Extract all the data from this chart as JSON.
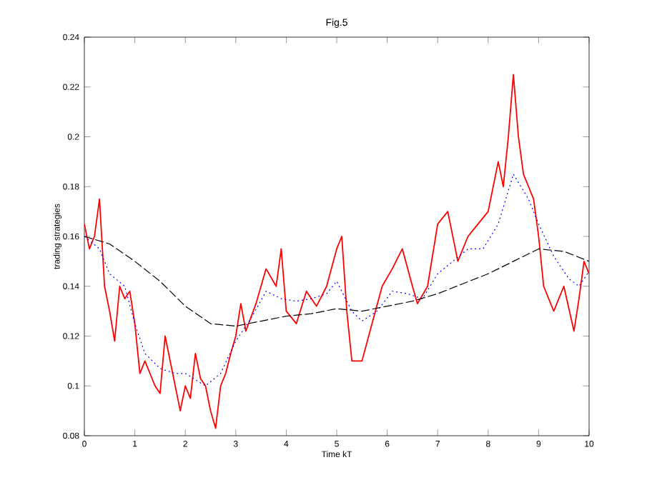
{
  "chart_data": {
    "type": "line",
    "title": "Fig.5",
    "xlabel": "Time kT",
    "ylabel": "trading strategies",
    "xlim": [
      0,
      10
    ],
    "ylim": [
      0.08,
      0.24
    ],
    "xticks": [
      0,
      1,
      2,
      3,
      4,
      5,
      6,
      7,
      8,
      9,
      10
    ],
    "yticks": [
      0.08,
      0.1,
      0.12,
      0.14,
      0.16,
      0.18,
      0.2,
      0.22,
      0.24
    ],
    "series": [
      {
        "color": "#ff0000",
        "line_style": "solid",
        "x": [
          0,
          0.1,
          0.2,
          0.3,
          0.4,
          0.5,
          0.6,
          0.7,
          0.8,
          0.9,
          1.0,
          1.1,
          1.2,
          1.4,
          1.5,
          1.6,
          1.8,
          1.9,
          2.0,
          2.1,
          2.2,
          2.3,
          2.4,
          2.5,
          2.6,
          2.7,
          2.8,
          2.9,
          3.0,
          3.1,
          3.2,
          3.4,
          3.6,
          3.8,
          3.9,
          4.0,
          4.2,
          4.4,
          4.6,
          4.8,
          5.0,
          5.1,
          5.2,
          5.3,
          5.5,
          5.7,
          5.9,
          6.1,
          6.3,
          6.5,
          6.6,
          6.8,
          7.0,
          7.2,
          7.4,
          7.6,
          7.8,
          8.0,
          8.2,
          8.3,
          8.4,
          8.5,
          8.6,
          8.7,
          8.8,
          8.9,
          9.0,
          9.1,
          9.3,
          9.5,
          9.7,
          9.8,
          9.9,
          10.0
        ],
        "values": [
          0.165,
          0.155,
          0.16,
          0.175,
          0.14,
          0.13,
          0.118,
          0.14,
          0.135,
          0.138,
          0.125,
          0.105,
          0.11,
          0.1,
          0.097,
          0.12,
          0.1,
          0.09,
          0.1,
          0.095,
          0.113,
          0.103,
          0.1,
          0.09,
          0.083,
          0.1,
          0.105,
          0.113,
          0.12,
          0.133,
          0.122,
          0.133,
          0.147,
          0.14,
          0.155,
          0.13,
          0.125,
          0.138,
          0.132,
          0.14,
          0.155,
          0.16,
          0.13,
          0.11,
          0.11,
          0.125,
          0.14,
          0.147,
          0.155,
          0.14,
          0.133,
          0.14,
          0.165,
          0.17,
          0.15,
          0.16,
          0.165,
          0.17,
          0.19,
          0.18,
          0.2,
          0.225,
          0.2,
          0.185,
          0.18,
          0.175,
          0.16,
          0.14,
          0.13,
          0.14,
          0.122,
          0.135,
          0.15,
          0.145
        ]
      },
      {
        "color": "#0000ff",
        "line_style": "dotted",
        "x": [
          0,
          0.3,
          0.5,
          0.8,
          1.0,
          1.2,
          1.5,
          1.8,
          2.0,
          2.4,
          2.7,
          3.0,
          3.3,
          3.6,
          3.9,
          4.2,
          4.5,
          4.8,
          5.0,
          5.3,
          5.5,
          5.8,
          6.1,
          6.4,
          6.7,
          7.0,
          7.3,
          7.6,
          7.9,
          8.2,
          8.5,
          8.8,
          9.0,
          9.3,
          9.6,
          9.8,
          10
        ],
        "values": [
          0.16,
          0.155,
          0.145,
          0.14,
          0.125,
          0.113,
          0.107,
          0.105,
          0.105,
          0.1,
          0.105,
          0.118,
          0.127,
          0.138,
          0.135,
          0.134,
          0.135,
          0.137,
          0.142,
          0.13,
          0.126,
          0.13,
          0.138,
          0.137,
          0.135,
          0.145,
          0.15,
          0.155,
          0.155,
          0.165,
          0.185,
          0.175,
          0.165,
          0.152,
          0.143,
          0.14,
          0.146
        ]
      },
      {
        "color": "#000000",
        "line_style": "dashed",
        "x": [
          0,
          0.5,
          1.0,
          1.5,
          2.0,
          2.5,
          3.0,
          3.5,
          4.0,
          4.5,
          5.0,
          5.5,
          6.0,
          6.5,
          7.0,
          7.5,
          8.0,
          8.5,
          9.0,
          9.5,
          10
        ],
        "values": [
          0.16,
          0.157,
          0.15,
          0.142,
          0.132,
          0.125,
          0.124,
          0.126,
          0.128,
          0.129,
          0.131,
          0.13,
          0.132,
          0.134,
          0.137,
          0.141,
          0.145,
          0.15,
          0.155,
          0.154,
          0.15
        ]
      }
    ]
  }
}
